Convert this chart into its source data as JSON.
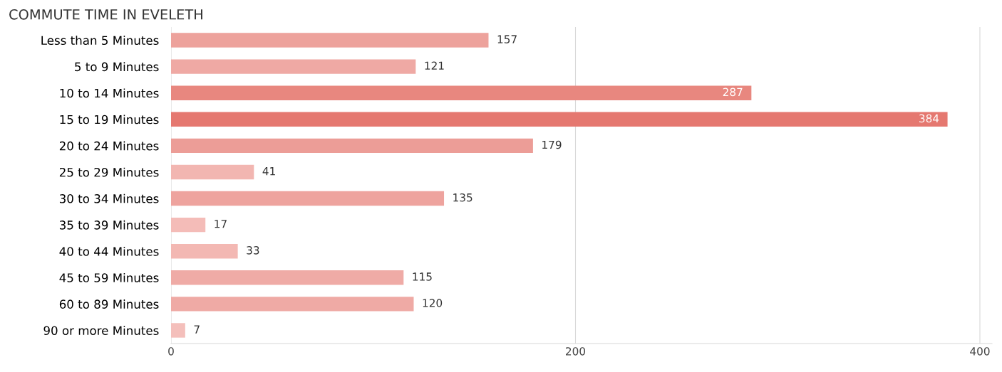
{
  "chart_data": {
    "type": "bar",
    "orientation": "horizontal",
    "title": "COMMUTE TIME IN EVELETH",
    "categories": [
      "Less than 5 Minutes",
      "5 to 9 Minutes",
      "10 to 14 Minutes",
      "15 to 19 Minutes",
      "20 to 24 Minutes",
      "25 to 29 Minutes",
      "30 to 34 Minutes",
      "35 to 39 Minutes",
      "40 to 44 Minutes",
      "45 to 59 Minutes",
      "60 to 89 Minutes",
      "90 or more Minutes"
    ],
    "values": [
      157,
      121,
      287,
      384,
      179,
      41,
      135,
      17,
      33,
      115,
      120,
      7
    ],
    "colors": [
      "#eda29c",
      "#efa9a4",
      "#e8877f",
      "#e57870",
      "#ec9d97",
      "#f2b6b1",
      "#eea39e",
      "#f4bcb8",
      "#f3b8b3",
      "#efaba6",
      "#efaaa5",
      "#f4bfbb"
    ],
    "xlim": [
      0,
      406
    ],
    "xticks": [
      0,
      200,
      400
    ],
    "grid": "x",
    "data_labels": true
  }
}
